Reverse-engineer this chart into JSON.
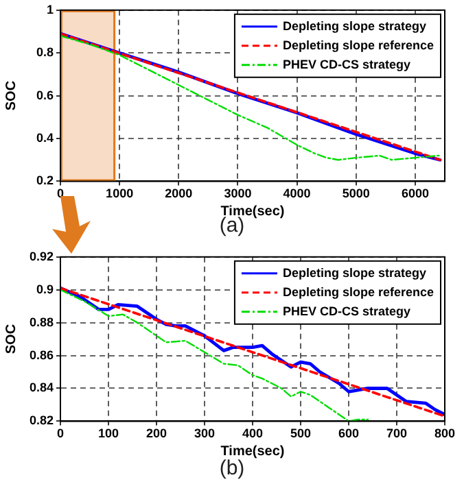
{
  "chart_data": [
    {
      "type": "line",
      "xlabel": "Time(sec)",
      "ylabel": "SOC",
      "annotations": [
        "(a)"
      ],
      "xlim": [
        0,
        6500
      ],
      "xticks": [
        0,
        1000,
        2000,
        3000,
        4000,
        5000,
        6000
      ],
      "ylim": [
        0.2,
        1
      ],
      "yticks": [
        0.2,
        0.4,
        0.6,
        0.8,
        1
      ],
      "grid": true,
      "legend": "top right",
      "marker": "none",
      "bands": [
        {
          "axis": "x",
          "from": 0,
          "to": 930,
          "color": "#f9dcc6"
        }
      ],
      "series": [
        {
          "name": "Depleting slope strategy",
          "color": "#0000ff",
          "line_style": "solid",
          "x": [
            0,
            1000,
            2000,
            3000,
            4000,
            5000,
            6000,
            6420
          ],
          "values": [
            0.89,
            0.8,
            0.71,
            0.61,
            0.52,
            0.42,
            0.33,
            0.3
          ]
        },
        {
          "name": "Depleting slope reference",
          "color": "#ff0000",
          "line_style": "dashed",
          "x": [
            0,
            6420
          ],
          "values": [
            0.89,
            0.3
          ]
        },
        {
          "name": "PHEV CD-CS strategy",
          "color": "#00dd00",
          "line_style": "dotted",
          "x": [
            0,
            500,
            1000,
            1500,
            2000,
            2500,
            3000,
            3500,
            4000,
            4300,
            4500,
            4700,
            5000,
            5400,
            5600,
            6000,
            6400
          ],
          "values": [
            0.88,
            0.84,
            0.79,
            0.72,
            0.65,
            0.58,
            0.51,
            0.45,
            0.37,
            0.33,
            0.31,
            0.3,
            0.31,
            0.32,
            0.3,
            0.31,
            0.32
          ]
        }
      ]
    },
    {
      "type": "line",
      "xlabel": "Time(sec)",
      "ylabel": "SOC",
      "annotations": [
        "(b)"
      ],
      "xlim": [
        0,
        800
      ],
      "xticks": [
        0,
        100,
        200,
        300,
        400,
        500,
        600,
        700,
        800
      ],
      "ylim": [
        0.82,
        0.92
      ],
      "yticks": [
        0.82,
        0.84,
        0.86,
        0.88,
        0.9,
        0.92
      ],
      "grid": true,
      "legend": "top right",
      "marker": "none",
      "series": [
        {
          "name": "Depleting slope strategy",
          "color": "#0000ff",
          "line_style": "solid",
          "x": [
            0,
            40,
            80,
            100,
            120,
            160,
            200,
            220,
            240,
            260,
            300,
            340,
            360,
            400,
            420,
            440,
            480,
            500,
            520,
            540,
            580,
            600,
            640,
            680,
            720,
            760,
            780,
            800
          ],
          "values": [
            0.901,
            0.896,
            0.888,
            0.888,
            0.891,
            0.89,
            0.882,
            0.879,
            0.878,
            0.878,
            0.872,
            0.863,
            0.865,
            0.865,
            0.866,
            0.861,
            0.853,
            0.856,
            0.855,
            0.85,
            0.843,
            0.838,
            0.84,
            0.84,
            0.832,
            0.831,
            0.827,
            0.824
          ]
        },
        {
          "name": "Depleting slope reference",
          "color": "#ff0000",
          "line_style": "dashed",
          "x": [
            0,
            800
          ],
          "values": [
            0.901,
            0.823
          ]
        },
        {
          "name": "PHEV CD-CS strategy",
          "color": "#00dd00",
          "line_style": "dotted",
          "x": [
            0,
            50,
            100,
            130,
            160,
            200,
            220,
            260,
            300,
            340,
            370,
            400,
            420,
            460,
            480,
            500,
            520,
            560,
            600,
            620,
            640
          ],
          "values": [
            0.9,
            0.893,
            0.884,
            0.885,
            0.88,
            0.872,
            0.868,
            0.869,
            0.862,
            0.855,
            0.854,
            0.848,
            0.846,
            0.84,
            0.835,
            0.838,
            0.836,
            0.828,
            0.82,
            0.821,
            0.821
          ]
        }
      ]
    }
  ]
}
